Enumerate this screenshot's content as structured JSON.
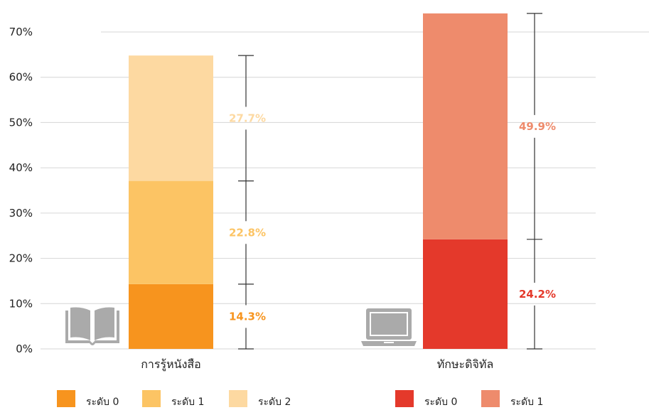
{
  "chart_data": {
    "type": "bar",
    "subtype": "stacked",
    "ylim": [
      0,
      70
    ],
    "yticks": [
      "0%",
      "10%",
      "20%",
      "30%",
      "40%",
      "50%",
      "60%",
      "70%"
    ],
    "grid": true,
    "groups": [
      {
        "category": "การรู้หนังสือ",
        "icon": "open-book-icon",
        "segments": [
          {
            "name": "ระดับ 0",
            "value": 14.3,
            "label": "14.3%",
            "color": "#F7941E",
            "label_color": "#F7941E"
          },
          {
            "name": "ระดับ 1",
            "value": 22.8,
            "label": "22.8%",
            "color": "#FCC464",
            "label_color": "#FCC464"
          },
          {
            "name": "ระดับ 2",
            "value": 27.7,
            "label": "27.7%",
            "color": "#FDD9A1",
            "label_color": "#FDD9A1"
          }
        ]
      },
      {
        "category": "ทักษะดิจิทัล",
        "icon": "laptop-icon",
        "segments": [
          {
            "name": "ระดับ 0",
            "value": 24.2,
            "label": "24.2%",
            "color": "#E4392B",
            "label_color": "#E4392B"
          },
          {
            "name": "ระดับ 1",
            "value": 49.9,
            "label": "49.9%",
            "color": "#EE8B6C",
            "label_color": "#EE8B6C"
          }
        ]
      }
    ],
    "legend_position": "bottom"
  }
}
